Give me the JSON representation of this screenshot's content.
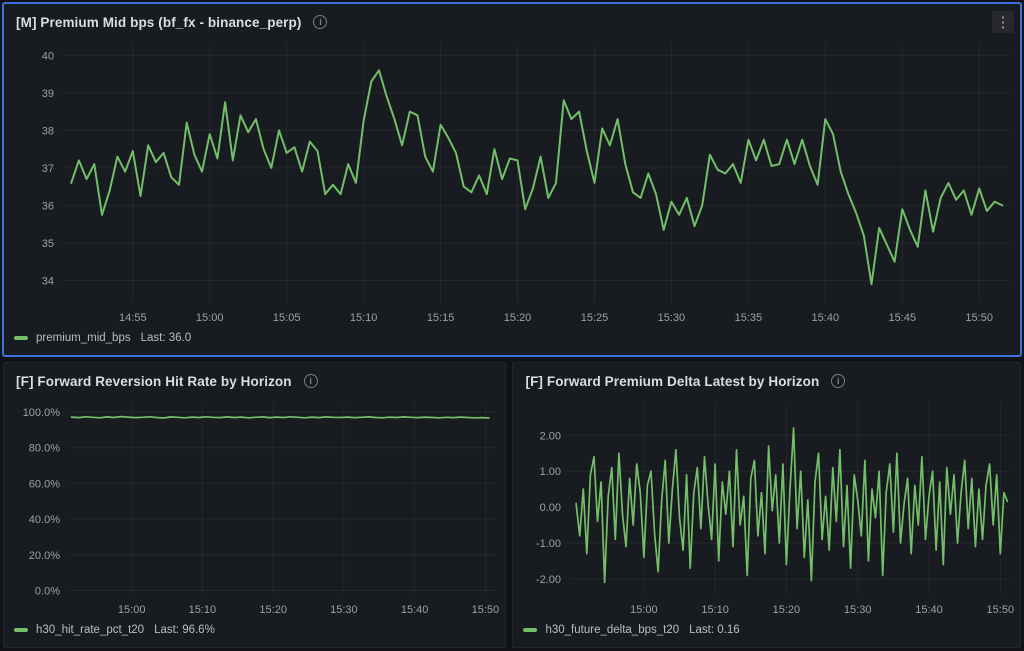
{
  "colors": {
    "page_background": "#111217",
    "panel_background": "#181b1f",
    "focus_border_blue": "#3d71d9",
    "series_green": "#73bf69"
  },
  "icons": {
    "info": "i",
    "panel_menu": "⋮"
  },
  "panels": [
    {
      "title": "[M] Premium Mid bps (bf_fx - binance_perp)",
      "focused": true,
      "legend": {
        "series_label": "premium_mid_bps",
        "last_text": "Last: 36.0"
      },
      "chart_data": {
        "type": "line",
        "title": "[M] Premium Mid bps (bf_fx - binance_perp)",
        "xlabel": "",
        "ylabel": "",
        "grid": true,
        "legend_position": "bottom-left",
        "x_domain": [
          -0.6,
          61
        ],
        "y_domain": [
          33.4,
          40.3
        ],
        "x_ticks": [
          {
            "t": 4,
            "label": "14:55"
          },
          {
            "t": 9,
            "label": "15:00"
          },
          {
            "t": 14,
            "label": "15:05"
          },
          {
            "t": 19,
            "label": "15:10"
          },
          {
            "t": 24,
            "label": "15:15"
          },
          {
            "t": 29,
            "label": "15:20"
          },
          {
            "t": 34,
            "label": "15:25"
          },
          {
            "t": 39,
            "label": "15:30"
          },
          {
            "t": 44,
            "label": "15:35"
          },
          {
            "t": 49,
            "label": "15:40"
          },
          {
            "t": 54,
            "label": "15:45"
          },
          {
            "t": 59,
            "label": "15:50"
          }
        ],
        "y_ticks": [
          {
            "v": 34,
            "label": "34"
          },
          {
            "v": 35,
            "label": "35"
          },
          {
            "v": 36,
            "label": "36"
          },
          {
            "v": 37,
            "label": "37"
          },
          {
            "v": 38,
            "label": "38"
          },
          {
            "v": 39,
            "label": "39"
          },
          {
            "v": 40,
            "label": "40"
          }
        ],
        "series": [
          {
            "name": "premium_mid_bps",
            "color": "#73bf69",
            "last": 36.0,
            "t_start": 0,
            "t_step": 0.5,
            "values": [
              36.6,
              37.2,
              36.7,
              37.1,
              35.75,
              36.4,
              37.3,
              36.9,
              37.45,
              36.25,
              37.6,
              37.15,
              37.4,
              36.75,
              36.55,
              38.2,
              37.35,
              36.9,
              37.9,
              37.25,
              38.75,
              37.2,
              38.4,
              37.95,
              38.3,
              37.5,
              37.0,
              38.0,
              37.4,
              37.55,
              36.9,
              37.7,
              37.45,
              36.3,
              36.55,
              36.3,
              37.1,
              36.6,
              38.25,
              39.3,
              39.6,
              38.9,
              38.3,
              37.6,
              38.5,
              38.4,
              37.3,
              36.9,
              38.15,
              37.8,
              37.4,
              36.5,
              36.35,
              36.8,
              36.3,
              37.5,
              36.7,
              37.25,
              37.2,
              35.9,
              36.45,
              37.3,
              36.2,
              36.6,
              38.8,
              38.3,
              38.5,
              37.45,
              36.6,
              38.05,
              37.6,
              38.3,
              37.1,
              36.35,
              36.2,
              36.85,
              36.3,
              35.35,
              36.1,
              35.75,
              36.2,
              35.45,
              36.0,
              37.35,
              36.95,
              36.85,
              37.1,
              36.6,
              37.75,
              37.2,
              37.75,
              37.05,
              37.1,
              37.75,
              37.1,
              37.75,
              37.05,
              36.55,
              38.3,
              37.9,
              36.9,
              36.3,
              35.8,
              35.2,
              33.9,
              35.4,
              34.95,
              34.5,
              35.9,
              35.35,
              34.9,
              36.4,
              35.3,
              36.2,
              36.6,
              36.15,
              36.4,
              35.75,
              36.45,
              35.85,
              36.1,
              36.0
            ]
          }
        ]
      }
    },
    {
      "title": "[F] Forward Reversion Hit Rate by Horizon",
      "focused": false,
      "legend": {
        "series_label": "h30_hit_rate_pct_t20",
        "last_text": "Last: 96.6%"
      },
      "chart_data": {
        "type": "line",
        "title": "[F] Forward Reversion Hit Rate by Horizon",
        "xlabel": "",
        "ylabel": "",
        "grid": true,
        "legend_position": "bottom-left",
        "x_domain": [
          0,
          60.5
        ],
        "y_domain": [
          -2.5,
          105
        ],
        "x_ticks": [
          {
            "t": 9,
            "label": "15:00"
          },
          {
            "t": 19,
            "label": "15:10"
          },
          {
            "t": 29,
            "label": "15:20"
          },
          {
            "t": 39,
            "label": "15:30"
          },
          {
            "t": 49,
            "label": "15:40"
          },
          {
            "t": 59,
            "label": "15:50"
          }
        ],
        "y_ticks": [
          {
            "v": 0,
            "label": "0.0%"
          },
          {
            "v": 20,
            "label": "20.0%"
          },
          {
            "v": 40,
            "label": "40.0%"
          },
          {
            "v": 60,
            "label": "60.0%"
          },
          {
            "v": 80,
            "label": "80.0%"
          },
          {
            "v": 100,
            "label": "100.0%"
          }
        ],
        "series": [
          {
            "name": "h30_hit_rate_pct_t20",
            "color": "#73bf69",
            "last": 96.6,
            "t_start": 0.5,
            "t_step": 1,
            "values": [
              97.1,
              96.8,
              97.3,
              97.0,
              96.7,
              97.2,
              96.9,
              97.4,
              97.1,
              96.8,
              97.0,
              97.3,
              96.9,
              96.6,
              97.2,
              97.0,
              96.7,
              97.1,
              96.9,
              97.3,
              97.0,
              96.8,
              97.2,
              96.9,
              97.1,
              96.7,
              97.0,
              97.2,
              96.8,
              97.1,
              96.9,
              97.3,
              97.0,
              96.7,
              97.1,
              96.8,
              97.2,
              97.0,
              96.9,
              97.1,
              96.8,
              97.0,
              97.2,
              96.9,
              96.7,
              97.1,
              96.9,
              97.2,
              97.0,
              96.8,
              97.1,
              96.9,
              96.7,
              97.0,
              96.8,
              97.1,
              96.9,
              96.7,
              96.8,
              96.6
            ]
          }
        ]
      }
    },
    {
      "title": "[F] Forward Premium Delta Latest by Horizon",
      "focused": false,
      "legend": {
        "series_label": "h30_future_delta_bps_t20",
        "last_text": "Last: 0.16"
      },
      "chart_data": {
        "type": "line",
        "title": "[F] Forward Premium Delta Latest by Horizon",
        "xlabel": "",
        "ylabel": "",
        "grid": true,
        "legend_position": "bottom-left",
        "x_domain": [
          0,
          62
        ],
        "y_domain": [
          -2.45,
          2.9
        ],
        "x_ticks": [
          {
            "t": 10.5,
            "label": "15:00"
          },
          {
            "t": 20.5,
            "label": "15:10"
          },
          {
            "t": 30.5,
            "label": "15:20"
          },
          {
            "t": 40.5,
            "label": "15:30"
          },
          {
            "t": 50.5,
            "label": "15:40"
          },
          {
            "t": 60.5,
            "label": "15:50"
          }
        ],
        "y_ticks": [
          {
            "v": -2,
            "label": "-2.00"
          },
          {
            "v": -1,
            "label": "-1.00"
          },
          {
            "v": 0,
            "label": "0.00"
          },
          {
            "v": 1,
            "label": "1.00"
          },
          {
            "v": 2,
            "label": "2.00"
          }
        ],
        "series": [
          {
            "name": "h30_future_delta_bps_t20",
            "color": "#73bf69",
            "last": 0.16,
            "t_start": 1,
            "t_step": 0.5,
            "values": [
              0.1,
              -0.8,
              0.5,
              -1.3,
              0.9,
              1.4,
              -0.4,
              0.7,
              -2.1,
              0.3,
              1.1,
              -0.9,
              1.5,
              -0.2,
              -1.1,
              0.8,
              -0.5,
              1.2,
              0.4,
              -1.4,
              0.6,
              1.0,
              -0.7,
              -1.8,
              0.2,
              1.3,
              -1.0,
              0.5,
              1.6,
              -0.3,
              -1.2,
              0.9,
              -1.7,
              0.4,
              1.1,
              -0.6,
              1.4,
              0.1,
              -0.9,
              1.2,
              -1.5,
              0.7,
              -0.2,
              1.0,
              -1.1,
              1.6,
              -0.5,
              0.3,
              -1.9,
              0.8,
              1.3,
              -0.8,
              0.4,
              -1.3,
              1.7,
              -0.1,
              0.9,
              -1.0,
              1.2,
              -1.6,
              0.5,
              2.2,
              -0.6,
              1.0,
              -1.4,
              0.2,
              -2.05,
              0.7,
              1.5,
              -0.9,
              0.3,
              -1.2,
              1.1,
              -0.4,
              1.6,
              -1.1,
              0.6,
              -1.7,
              0.9,
              0.2,
              -0.8,
              1.3,
              -1.5,
              0.5,
              -0.3,
              1.0,
              -1.9,
              0.4,
              1.2,
              -0.7,
              1.5,
              -1.0,
              0.1,
              0.8,
              -1.3,
              0.6,
              -0.5,
              1.4,
              -0.9,
              0.3,
              1.0,
              -1.2,
              0.7,
              -1.6,
              1.1,
              -0.2,
              0.9,
              -1.0,
              0.4,
              1.3,
              -0.6,
              0.8,
              -1.1,
              0.5,
              -0.9,
              0.6,
              1.2,
              -0.5,
              0.9,
              -1.3,
              0.4,
              0.16
            ]
          }
        ]
      }
    }
  ]
}
